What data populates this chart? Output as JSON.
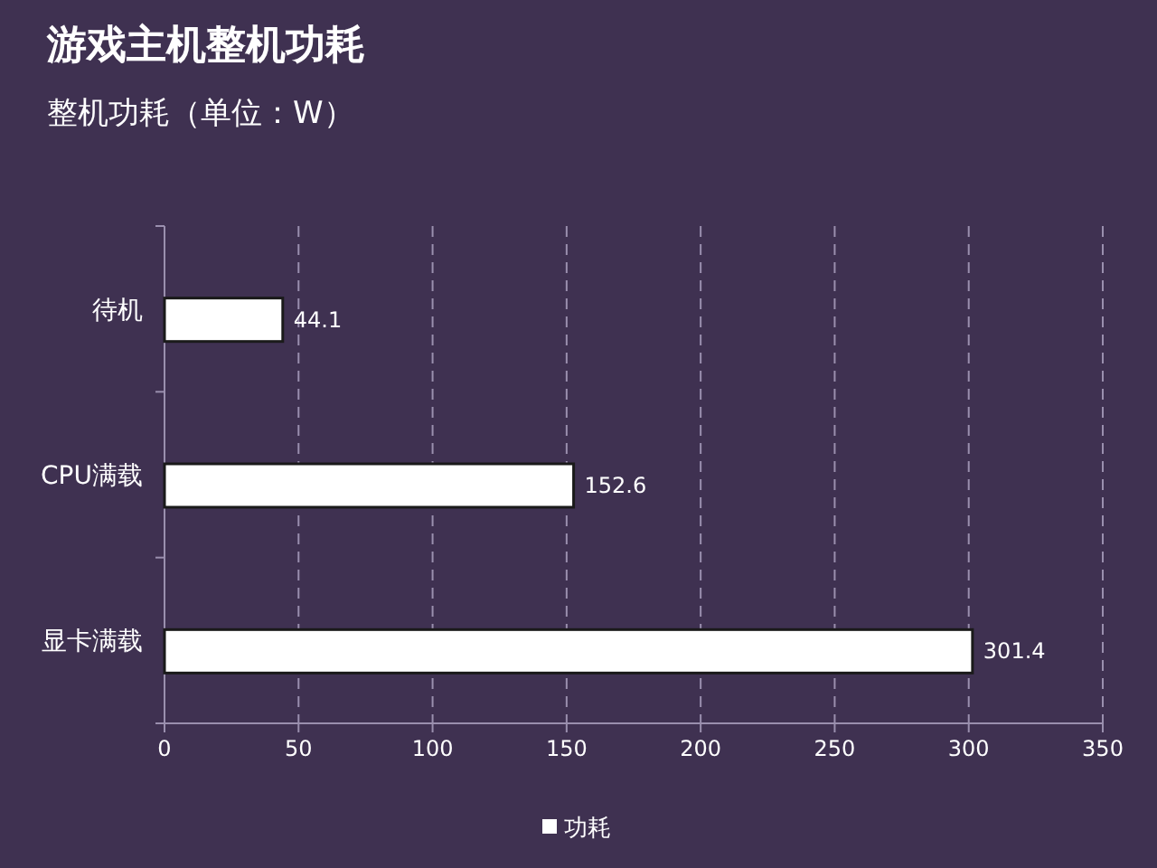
{
  "chart_data": {
    "type": "bar",
    "orientation": "horizontal",
    "title": "游戏主机整机功耗",
    "subtitle": "整机功耗（单位：W）",
    "categories": [
      "待机",
      "CPU满载",
      "显卡满载"
    ],
    "series": [
      {
        "name": "功耗",
        "color": "#ffffff",
        "values": [
          44.1,
          152.6,
          301.4
        ]
      }
    ],
    "xlim": [
      0,
      350
    ],
    "xticks": [
      0,
      50,
      100,
      150,
      200,
      250,
      300,
      350
    ],
    "grid": "x",
    "legend": "bottom",
    "data_labels": true
  }
}
